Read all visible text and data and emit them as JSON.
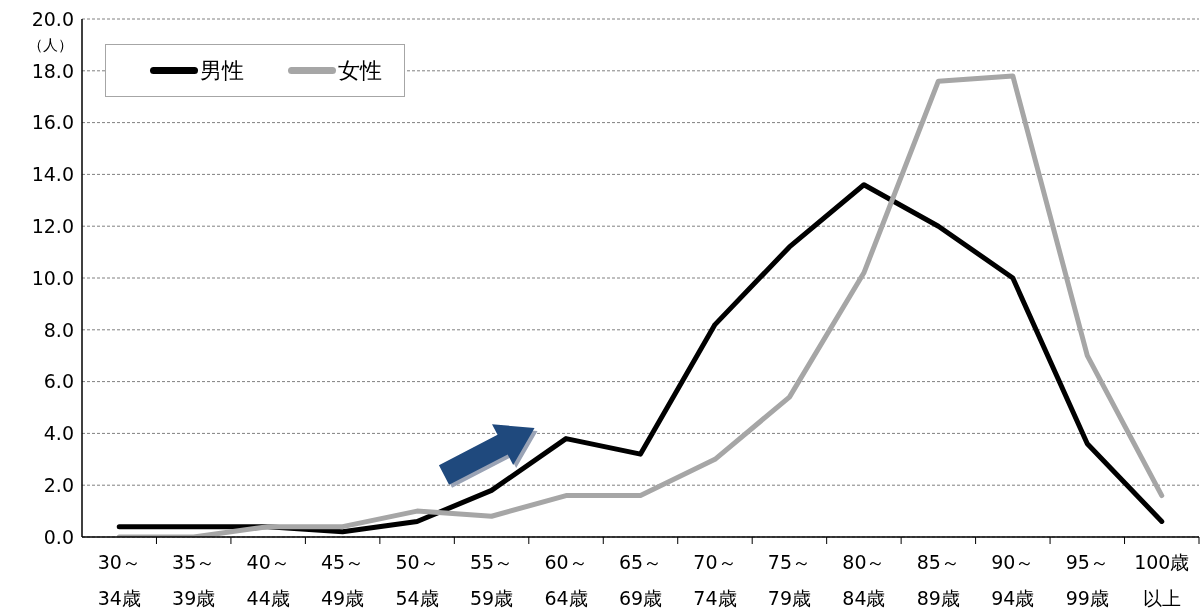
{
  "chart_data": {
    "type": "line",
    "ylabel": "（人）",
    "categories": [
      "30～34歳",
      "35～39歳",
      "40～44歳",
      "45～49歳",
      "50～54歳",
      "55～59歳",
      "60～64歳",
      "65～69歳",
      "70～74歳",
      "75～79歳",
      "80～84歳",
      "85～89歳",
      "90～94歳",
      "95～99歳",
      "100歳以上"
    ],
    "series": [
      {
        "name": "男性",
        "color": "#000000",
        "values": [
          0.4,
          0.4,
          0.4,
          0.2,
          0.6,
          1.8,
          3.8,
          3.2,
          8.2,
          11.2,
          13.6,
          12.0,
          10.0,
          3.6,
          0.6
        ]
      },
      {
        "name": "女性",
        "color": "#a6a6a6",
        "values": [
          0.0,
          0.0,
          0.4,
          0.4,
          1.0,
          0.8,
          1.6,
          1.6,
          3.0,
          5.4,
          10.2,
          17.6,
          17.8,
          7.0,
          1.6
        ]
      }
    ],
    "ylim": [
      0,
      20
    ],
    "yticks": [
      {
        "value": 0,
        "label": "0.0"
      },
      {
        "value": 2,
        "label": "2.0"
      },
      {
        "value": 4,
        "label": "4.0"
      },
      {
        "value": 6,
        "label": "6.0"
      },
      {
        "value": 8,
        "label": "8.0"
      },
      {
        "value": 10,
        "label": "10.0"
      },
      {
        "value": 12,
        "label": "12.0"
      },
      {
        "value": 14,
        "label": "14.0"
      },
      {
        "value": 16,
        "label": "16.0"
      },
      {
        "value": 18,
        "label": "18.0"
      },
      {
        "value": 20,
        "label": "20.0"
      }
    ],
    "grid": "y",
    "legend": "top left"
  }
}
